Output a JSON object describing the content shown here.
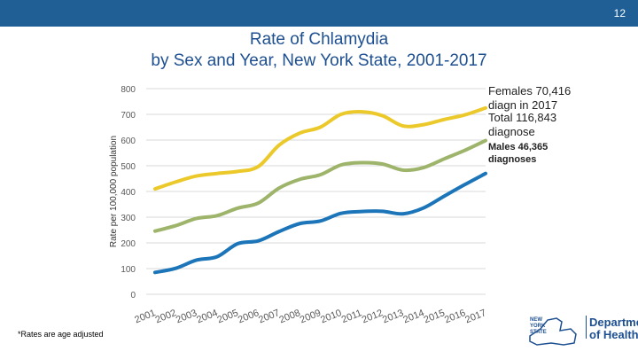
{
  "page_number": "12",
  "footnote": "*Rates are age adjusted",
  "colors": {
    "header_bar": "#1f5f96",
    "females": "#ecc92a",
    "total": "#9db46a",
    "males": "#1c75b8",
    "grid": "#d9d9d9",
    "brand": "#1d4f91"
  },
  "annotations": {
    "females": "Females 70,416  diagn in 2017",
    "total": "Total 116,843 diagnose",
    "males": "Males 46,365 diagnoses"
  },
  "logo": {
    "line1": "Department",
    "line2": "of Health",
    "state_line1": "NEW",
    "state_line2": "YORK",
    "state_line3": "STATE"
  },
  "chart_data": {
    "type": "line",
    "title": "Rate of Chlamydia",
    "subtitle": "by Sex and Year, New York State, 2001-2017",
    "ylabel": "Rate per 100,000 population",
    "xlabel": "",
    "ylim": [
      0,
      800
    ],
    "yticks": [
      0,
      100,
      200,
      300,
      400,
      500,
      600,
      700,
      800
    ],
    "grid": true,
    "categories": [
      "2001",
      "2002",
      "2003",
      "2004",
      "2005",
      "2006",
      "2007",
      "2008",
      "2009",
      "2010",
      "2011",
      "2012",
      "2013",
      "2014",
      "2015",
      "2016",
      "2017"
    ],
    "series": [
      {
        "name": "Females",
        "color": "#ecc92a",
        "values": [
          410,
          437,
          460,
          470,
          478,
          497,
          580,
          627,
          650,
          700,
          710,
          695,
          655,
          660,
          680,
          698,
          725
        ]
      },
      {
        "name": "Total",
        "color": "#9db46a",
        "values": [
          246,
          267,
          295,
          306,
          335,
          355,
          413,
          447,
          465,
          503,
          512,
          507,
          483,
          493,
          527,
          560,
          598
        ]
      },
      {
        "name": "Males",
        "color": "#1c75b8",
        "values": [
          85,
          101,
          133,
          146,
          197,
          208,
          244,
          275,
          285,
          315,
          322,
          323,
          313,
          336,
          382,
          427,
          470
        ]
      }
    ]
  }
}
